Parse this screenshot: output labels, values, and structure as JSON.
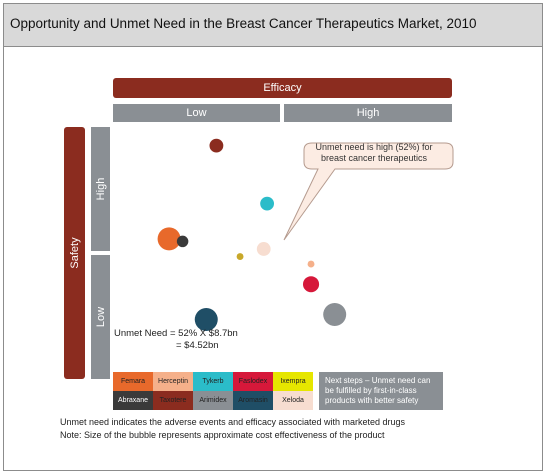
{
  "title": "Opportunity  and Unmet Need in the Breast Cancer Therapeutics Market, 2010",
  "chart_data": {
    "type": "scatter",
    "title": "Opportunity  and Unmet Need in the Breast Cancer Therapeutics Market, 2010",
    "x_axis": {
      "label": "Efficacy",
      "categories": [
        "Low",
        "High"
      ],
      "range": [
        0,
        1
      ]
    },
    "y_axis": {
      "label": "Safety",
      "categories": [
        "Low",
        "High"
      ],
      "range": [
        0,
        1
      ]
    },
    "points": [
      {
        "color": "#8b2c1f",
        "x": 0.3,
        "y": 0.93,
        "size": 6
      },
      {
        "color": "#2bbcc9",
        "x": 0.45,
        "y": 0.7,
        "size": 6
      },
      {
        "color": "#e8692b",
        "x": 0.16,
        "y": 0.56,
        "size": 10
      },
      {
        "color": "#3a3a3a",
        "x": 0.2,
        "y": 0.55,
        "size": 5
      },
      {
        "color": "#f7ddd0",
        "x": 0.44,
        "y": 0.52,
        "size": 6
      },
      {
        "color": "#c8a82a",
        "x": 0.37,
        "y": 0.49,
        "size": 3
      },
      {
        "color": "#f5b08a",
        "x": 0.58,
        "y": 0.46,
        "size": 3
      },
      {
        "color": "#d6183a",
        "x": 0.58,
        "y": 0.38,
        "size": 7
      },
      {
        "color": "#8a8f94",
        "x": 0.65,
        "y": 0.26,
        "size": 10
      },
      {
        "color": "#1f4e66",
        "x": 0.27,
        "y": 0.24,
        "size": 10
      }
    ],
    "callout": "Unmet need is high (52%) for breast cancer therapeutics",
    "annotation_lines": [
      "Unmet Need = 52% X $8.7bn",
      "= $4.52bn"
    ]
  },
  "legend": [
    {
      "label": "Femara",
      "color": "#e8692b",
      "text_color": "#222"
    },
    {
      "label": "Herceptin",
      "color": "#f5b08a",
      "text_color": "#222"
    },
    {
      "label": "Tykerb",
      "color": "#2bbcc9",
      "text_color": "#222"
    },
    {
      "label": "Faslodex",
      "color": "#d6183a",
      "text_color": "#222"
    },
    {
      "label": "Ixempra",
      "color": "#e6e600",
      "text_color": "#222"
    },
    {
      "label": "Abraxane",
      "color": "#3a3a3a",
      "text_color": "#fff"
    },
    {
      "label": "Taxotere",
      "color": "#8b2c1f",
      "text_color": "#222"
    },
    {
      "label": "Arimidex",
      "color": "#8a8f94",
      "text_color": "#222"
    },
    {
      "label": "Aromasin",
      "color": "#1f4e66",
      "text_color": "#222"
    },
    {
      "label": "Xeloda",
      "color": "#f7ddd0",
      "text_color": "#222"
    }
  ],
  "next_steps": "Next steps – Unmet need can be fulfilled by first-in-class products with better safety",
  "footnotes": [
    "Unmet need indicates the adverse events and efficacy associated with marketed drugs",
    "Note: Size of the bubble represents approximate cost effectiveness of the product"
  ]
}
